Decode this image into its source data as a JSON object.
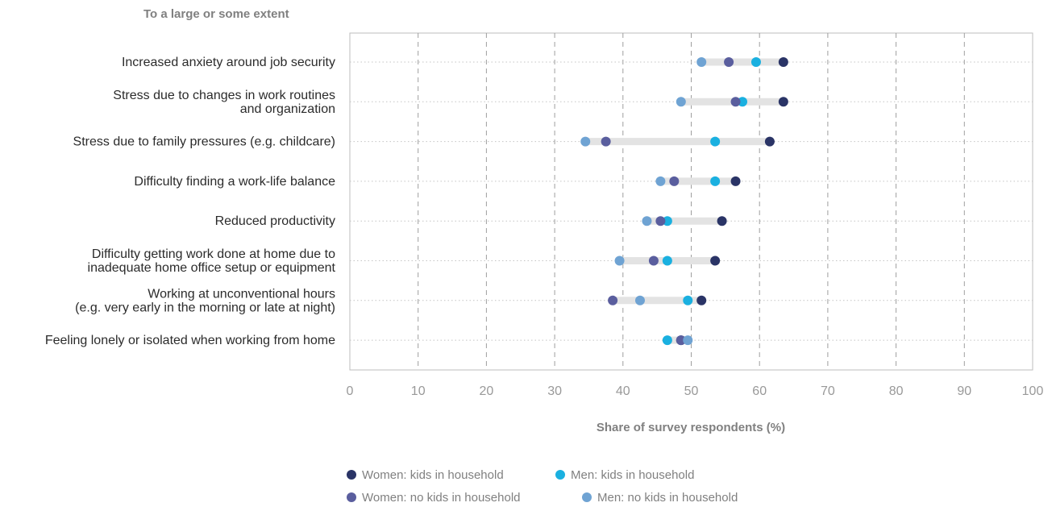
{
  "chart_data": {
    "type": "dot-range",
    "subtitle": "To a large or some extent",
    "xlabel": "Share of survey respondents (%)",
    "xlim": [
      0,
      100
    ],
    "xticks": [
      "0",
      "10",
      "20",
      "30",
      "40",
      "50",
      "60",
      "70",
      "80",
      "90",
      "100"
    ],
    "grid": true,
    "legend_position": "bottom-left",
    "categories": [
      [
        "Increased anxiety around job security"
      ],
      [
        "Stress due to changes in work routines",
        "and organization"
      ],
      [
        "Stress due to family pressures (e.g. childcare)"
      ],
      [
        "Difficulty finding a work-life balance"
      ],
      [
        "Reduced productivity"
      ],
      [
        "Difficulty getting work done at home due to",
        "inadequate home office setup or equipment"
      ],
      [
        "Working at unconventional hours",
        "(e.g. very early in the morning or late at night)"
      ],
      [
        "Feeling lonely or isolated when working from home"
      ]
    ],
    "series": [
      {
        "name": "Women: kids in household",
        "color": "#2a3466",
        "values": [
          63.5,
          63.5,
          61.5,
          56.5,
          54.5,
          53.5,
          51.5,
          48.5
        ]
      },
      {
        "name": "Men: kids in household",
        "color": "#1ab0e0",
        "values": [
          59.5,
          57.5,
          53.5,
          53.5,
          46.5,
          46.5,
          49.5,
          46.5
        ]
      },
      {
        "name": "Women: no kids in household",
        "color": "#5a5e9e",
        "values": [
          55.5,
          56.5,
          37.5,
          47.5,
          45.5,
          44.5,
          38.5,
          48.5
        ]
      },
      {
        "name": "Men: no kids in household",
        "color": "#6fa3d3",
        "values": [
          51.5,
          48.5,
          34.5,
          45.5,
          43.5,
          39.5,
          42.5,
          49.5
        ]
      }
    ],
    "range_bar_color": "#e3e3e3"
  }
}
